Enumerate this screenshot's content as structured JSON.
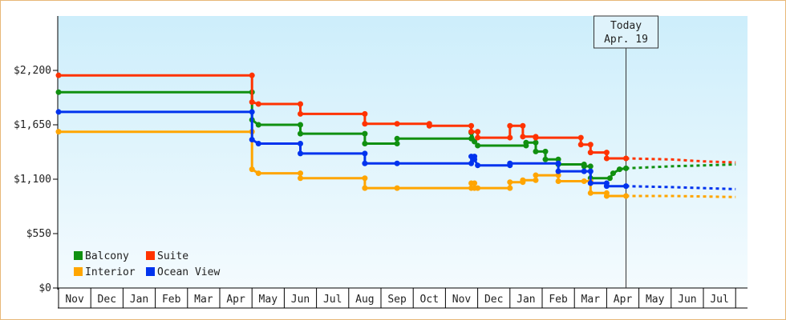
{
  "chart_data": {
    "type": "line",
    "ylim": [
      0,
      2750
    ],
    "y_ticks": [
      {
        "value": 0,
        "label": "$0"
      },
      {
        "value": 550,
        "label": "$550"
      },
      {
        "value": 1100,
        "label": "$1,100"
      },
      {
        "value": 1650,
        "label": "$1,650"
      },
      {
        "value": 2200,
        "label": "$2,200"
      }
    ],
    "x_months": [
      "Nov",
      "Dec",
      "Jan",
      "Feb",
      "Mar",
      "Apr",
      "May",
      "Jun",
      "Jul",
      "Aug",
      "Sep",
      "Oct",
      "Nov",
      "Dec",
      "Jan",
      "Feb",
      "Mar",
      "Apr",
      "May",
      "Jun",
      "Jul"
    ],
    "today": {
      "line1": "Today",
      "line2": "Apr. 19",
      "x": 17.6
    },
    "legend": [
      {
        "name": "Balcony",
        "color": "#109010"
      },
      {
        "name": "Suite",
        "color": "#ff3300"
      },
      {
        "name": "Interior",
        "color": "#ffa500"
      },
      {
        "name": "Ocean View",
        "color": "#0033ee"
      }
    ],
    "series": [
      {
        "name": "Balcony",
        "color": "#109010",
        "points": [
          [
            0,
            1980
          ],
          [
            6.0,
            1980
          ],
          [
            6.0,
            1700
          ],
          [
            6.2,
            1650
          ],
          [
            7.5,
            1650
          ],
          [
            7.5,
            1560
          ],
          [
            9.5,
            1560
          ],
          [
            9.5,
            1460
          ],
          [
            10.5,
            1460
          ],
          [
            10.5,
            1510
          ],
          [
            12.8,
            1510
          ],
          [
            12.8,
            1570
          ],
          [
            12.9,
            1480
          ],
          [
            13.0,
            1440
          ],
          [
            14.5,
            1440
          ],
          [
            14.5,
            1470
          ],
          [
            14.8,
            1470
          ],
          [
            14.8,
            1380
          ],
          [
            15.1,
            1380
          ],
          [
            15.1,
            1300
          ],
          [
            15.5,
            1300
          ],
          [
            15.5,
            1250
          ],
          [
            16.3,
            1250
          ],
          [
            16.3,
            1230
          ],
          [
            16.5,
            1230
          ],
          [
            16.5,
            1110
          ],
          [
            17.1,
            1110
          ],
          [
            17.2,
            1160
          ],
          [
            17.4,
            1200
          ],
          [
            17.6,
            1210
          ]
        ],
        "forecast": [
          [
            17.6,
            1210
          ],
          [
            19.0,
            1230
          ],
          [
            20.0,
            1240
          ],
          [
            21.0,
            1250
          ]
        ]
      },
      {
        "name": "Suite",
        "color": "#ff3300",
        "points": [
          [
            0,
            2150
          ],
          [
            6.0,
            2150
          ],
          [
            6.0,
            1880
          ],
          [
            6.2,
            1860
          ],
          [
            7.5,
            1860
          ],
          [
            7.5,
            1760
          ],
          [
            9.5,
            1760
          ],
          [
            9.5,
            1660
          ],
          [
            10.5,
            1660
          ],
          [
            11.5,
            1660
          ],
          [
            11.5,
            1640
          ],
          [
            12.8,
            1640
          ],
          [
            12.8,
            1580
          ],
          [
            13.0,
            1580
          ],
          [
            13.0,
            1520
          ],
          [
            14.0,
            1520
          ],
          [
            14.0,
            1640
          ],
          [
            14.4,
            1640
          ],
          [
            14.4,
            1530
          ],
          [
            14.8,
            1530
          ],
          [
            14.8,
            1520
          ],
          [
            16.2,
            1520
          ],
          [
            16.2,
            1450
          ],
          [
            16.5,
            1450
          ],
          [
            16.5,
            1370
          ],
          [
            17.0,
            1370
          ],
          [
            17.0,
            1310
          ],
          [
            17.6,
            1310
          ]
        ],
        "forecast": [
          [
            17.6,
            1310
          ],
          [
            19.0,
            1300
          ],
          [
            20.0,
            1280
          ],
          [
            21.0,
            1270
          ]
        ]
      },
      {
        "name": "Interior",
        "color": "#ffa500",
        "points": [
          [
            0,
            1580
          ],
          [
            6.0,
            1580
          ],
          [
            6.0,
            1200
          ],
          [
            6.2,
            1160
          ],
          [
            7.5,
            1160
          ],
          [
            7.5,
            1110
          ],
          [
            9.5,
            1110
          ],
          [
            9.5,
            1010
          ],
          [
            10.5,
            1010
          ],
          [
            12.8,
            1010
          ],
          [
            12.8,
            1060
          ],
          [
            12.9,
            1060
          ],
          [
            12.9,
            1010
          ],
          [
            13.0,
            1010
          ],
          [
            14.0,
            1010
          ],
          [
            14.0,
            1070
          ],
          [
            14.4,
            1070
          ],
          [
            14.4,
            1090
          ],
          [
            14.8,
            1090
          ],
          [
            14.8,
            1140
          ],
          [
            15.5,
            1140
          ],
          [
            15.5,
            1080
          ],
          [
            16.3,
            1080
          ],
          [
            16.5,
            1080
          ],
          [
            16.5,
            960
          ],
          [
            17.0,
            960
          ],
          [
            17.0,
            930
          ],
          [
            17.6,
            930
          ]
        ],
        "forecast": [
          [
            17.6,
            930
          ],
          [
            19.0,
            930
          ],
          [
            20.0,
            925
          ],
          [
            21.0,
            920
          ]
        ]
      },
      {
        "name": "Ocean View",
        "color": "#0033ee",
        "points": [
          [
            0,
            1780
          ],
          [
            6.0,
            1780
          ],
          [
            6.0,
            1500
          ],
          [
            6.2,
            1460
          ],
          [
            7.5,
            1460
          ],
          [
            7.5,
            1360
          ],
          [
            9.5,
            1360
          ],
          [
            9.5,
            1260
          ],
          [
            10.5,
            1260
          ],
          [
            12.8,
            1260
          ],
          [
            12.8,
            1330
          ],
          [
            12.9,
            1330
          ],
          [
            12.9,
            1300
          ],
          [
            13.0,
            1240
          ],
          [
            14.0,
            1240
          ],
          [
            14.0,
            1260
          ],
          [
            15.5,
            1260
          ],
          [
            15.5,
            1180
          ],
          [
            16.3,
            1180
          ],
          [
            16.5,
            1180
          ],
          [
            16.5,
            1060
          ],
          [
            17.0,
            1060
          ],
          [
            17.0,
            1030
          ],
          [
            17.6,
            1030
          ]
        ],
        "forecast": [
          [
            17.6,
            1030
          ],
          [
            19.0,
            1020
          ],
          [
            20.0,
            1010
          ],
          [
            21.0,
            1000
          ]
        ]
      }
    ]
  }
}
